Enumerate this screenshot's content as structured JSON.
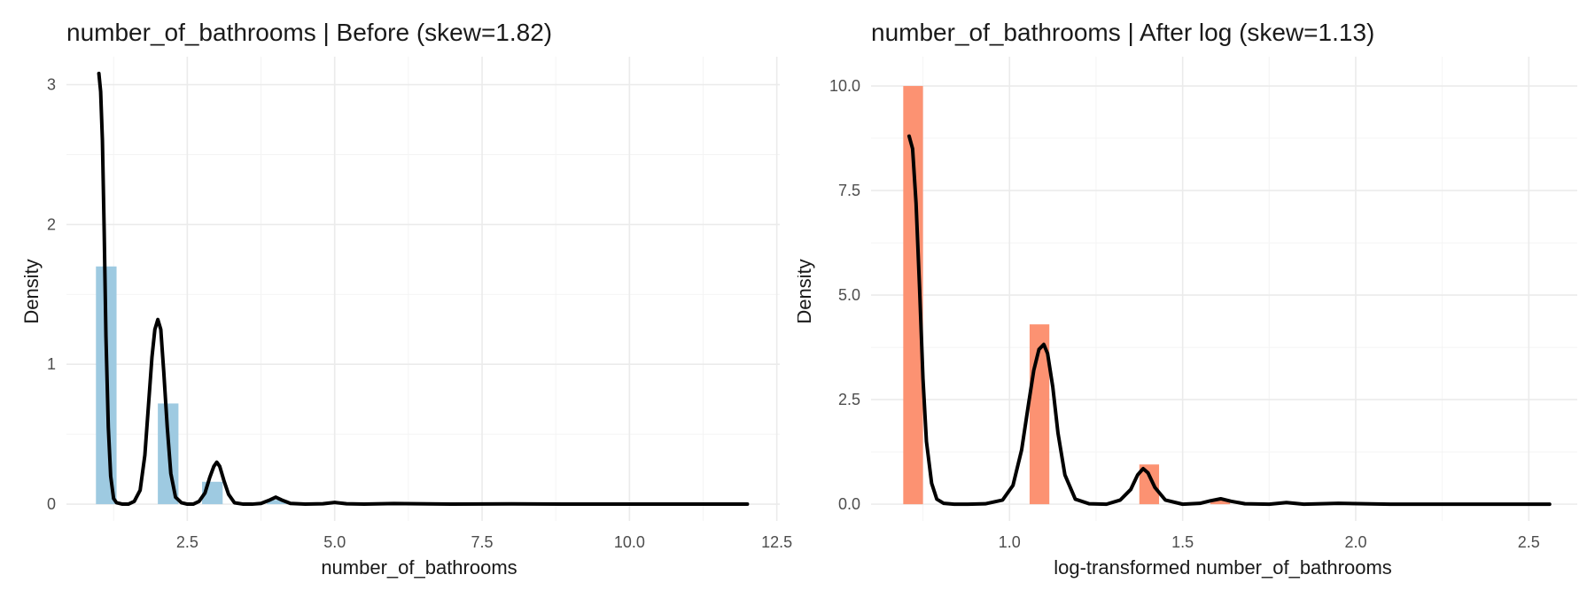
{
  "chart_data": [
    {
      "type": "histogram+density",
      "title": "number_of_bathrooms | Before (skew=1.82)",
      "xlabel": "number_of_bathrooms",
      "ylabel": "Density",
      "xlim": [
        0.45,
        12.55
      ],
      "ylim": [
        -0.12,
        3.2
      ],
      "x_ticks": [
        2.5,
        5.0,
        7.5,
        10.0,
        12.5
      ],
      "x_tick_labels": [
        "2.5",
        "5.0",
        "7.5",
        "10.0",
        "12.5"
      ],
      "y_ticks": [
        0,
        1,
        2,
        3
      ],
      "y_tick_labels": [
        "0",
        "1",
        "2",
        "3"
      ],
      "grid": true,
      "bar_color": "#9ecae1",
      "line_color": "#000000",
      "bars": [
        {
          "x0": 0.95,
          "x1": 1.3,
          "density": 1.7
        },
        {
          "x0": 2.0,
          "x1": 2.35,
          "density": 0.72
        },
        {
          "x0": 2.75,
          "x1": 3.1,
          "density": 0.16
        },
        {
          "x0": 3.85,
          "x1": 4.2,
          "density": 0.03
        }
      ],
      "density_curve": {
        "x": [
          1.0,
          1.03,
          1.06,
          1.09,
          1.12,
          1.16,
          1.2,
          1.25,
          1.3,
          1.4,
          1.5,
          1.6,
          1.7,
          1.78,
          1.84,
          1.9,
          1.95,
          2.0,
          2.05,
          2.1,
          2.16,
          2.22,
          2.3,
          2.4,
          2.5,
          2.6,
          2.7,
          2.8,
          2.88,
          2.95,
          3.0,
          3.05,
          3.12,
          3.2,
          3.3,
          3.45,
          3.6,
          3.75,
          3.9,
          4.0,
          4.1,
          4.25,
          4.5,
          4.8,
          5.0,
          5.2,
          5.5,
          6.0,
          7.0,
          8.0,
          9.0,
          10.0,
          11.0,
          12.0
        ],
        "y": [
          3.08,
          2.95,
          2.6,
          1.95,
          1.2,
          0.55,
          0.2,
          0.04,
          0.01,
          0.0,
          0.0,
          0.02,
          0.1,
          0.35,
          0.7,
          1.05,
          1.25,
          1.32,
          1.25,
          0.95,
          0.55,
          0.22,
          0.05,
          0.01,
          0.0,
          0.0,
          0.02,
          0.08,
          0.19,
          0.27,
          0.3,
          0.27,
          0.17,
          0.07,
          0.01,
          0.0,
          0.0,
          0.005,
          0.03,
          0.05,
          0.03,
          0.005,
          0.0,
          0.003,
          0.012,
          0.003,
          0.0,
          0.004,
          0.0,
          0.002,
          0.0,
          0.0,
          0.0,
          0.0
        ]
      }
    },
    {
      "type": "histogram+density",
      "title": "number_of_bathrooms | After log (skew=1.13)",
      "xlabel": "log-transformed number_of_bathrooms",
      "ylabel": "Density",
      "xlim": [
        0.6,
        2.64
      ],
      "ylim": [
        -0.4,
        10.7
      ],
      "x_ticks": [
        1.0,
        1.5,
        2.0,
        2.5
      ],
      "x_tick_labels": [
        "1.0",
        "1.5",
        "2.0",
        "2.5"
      ],
      "y_ticks": [
        0,
        2.5,
        5.0,
        7.5,
        10.0
      ],
      "y_tick_labels": [
        "0.0",
        "2.5",
        "5.0",
        "7.5",
        "10.0"
      ],
      "grid": true,
      "bar_color": "#fc9272",
      "line_color": "#000000",
      "bars": [
        {
          "x0": 0.693,
          "x1": 0.75,
          "density": 10.0
        },
        {
          "x0": 1.058,
          "x1": 1.115,
          "density": 4.3
        },
        {
          "x0": 1.375,
          "x1": 1.432,
          "density": 0.95
        },
        {
          "x0": 1.58,
          "x1": 1.637,
          "density": 0.12
        }
      ],
      "density_curve": {
        "x": [
          0.71,
          0.72,
          0.73,
          0.74,
          0.75,
          0.76,
          0.775,
          0.79,
          0.81,
          0.84,
          0.88,
          0.93,
          0.98,
          1.01,
          1.035,
          1.055,
          1.07,
          1.085,
          1.099,
          1.11,
          1.125,
          1.14,
          1.16,
          1.19,
          1.23,
          1.28,
          1.32,
          1.35,
          1.37,
          1.386,
          1.4,
          1.42,
          1.45,
          1.5,
          1.55,
          1.58,
          1.61,
          1.64,
          1.68,
          1.75,
          1.8,
          1.85,
          1.95,
          2.1,
          2.3,
          2.56
        ],
        "y": [
          8.8,
          8.5,
          7.2,
          5.2,
          3.0,
          1.5,
          0.5,
          0.12,
          0.02,
          0.0,
          0.0,
          0.01,
          0.1,
          0.45,
          1.3,
          2.4,
          3.2,
          3.7,
          3.82,
          3.6,
          2.8,
          1.7,
          0.7,
          0.12,
          0.01,
          0.0,
          0.1,
          0.35,
          0.7,
          0.85,
          0.75,
          0.4,
          0.1,
          0.0,
          0.02,
          0.08,
          0.13,
          0.07,
          0.01,
          0.0,
          0.04,
          0.0,
          0.02,
          0.0,
          0.0,
          0.0
        ]
      }
    }
  ]
}
